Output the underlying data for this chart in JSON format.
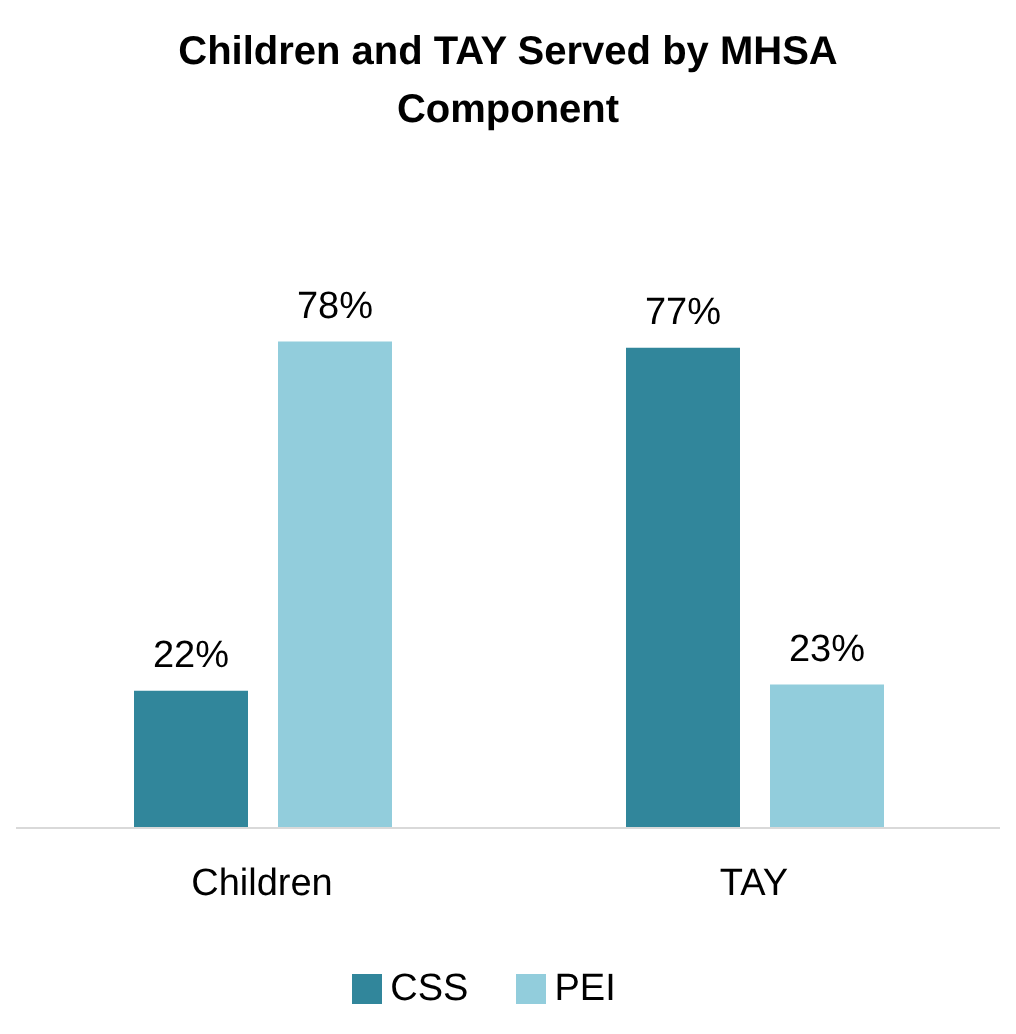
{
  "chart_data": {
    "type": "bar",
    "title": "Children and TAY Served by MHSA Component",
    "categories": [
      "Children",
      "TAY"
    ],
    "series": [
      {
        "name": "CSS",
        "color": "#31869b",
        "values": [
          22,
          77
        ],
        "value_labels": [
          "22%",
          "77%"
        ]
      },
      {
        "name": "PEI",
        "color": "#92cddc",
        "values": [
          78,
          23
        ],
        "value_labels": [
          "78%",
          "23%"
        ]
      }
    ],
    "legend": "bottom"
  }
}
